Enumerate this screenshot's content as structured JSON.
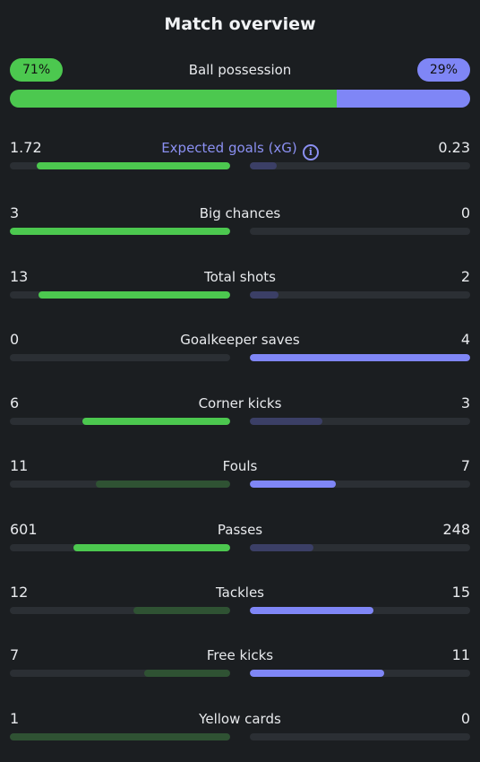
{
  "title": "Match overview",
  "colors": {
    "home_accent": "#4cc84f",
    "away_accent": "#7f86f6",
    "home_muted": "#2f5233",
    "away_muted": "#3b3f66",
    "track": "#2b2f34",
    "background": "#1b1e21"
  },
  "possession": {
    "label": "Ball possession",
    "home_label": "71%",
    "away_label": "29%",
    "home_pct": 71
  },
  "stats": [
    {
      "label": "Expected goals (xG)",
      "home": "1.72",
      "away": "0.23",
      "home_fill": 0.88,
      "away_fill": 0.12,
      "home_win": true,
      "away_win": false,
      "accent": true,
      "info": true
    },
    {
      "label": "Big chances",
      "home": "3",
      "away": "0",
      "home_fill": 1.0,
      "away_fill": 0.0,
      "home_win": true,
      "away_win": false
    },
    {
      "label": "Total shots",
      "home": "13",
      "away": "2",
      "home_fill": 0.87,
      "away_fill": 0.13,
      "home_win": true,
      "away_win": false
    },
    {
      "label": "Goalkeeper saves",
      "home": "0",
      "away": "4",
      "home_fill": 0.0,
      "away_fill": 1.0,
      "home_win": false,
      "away_win": true
    },
    {
      "label": "Corner kicks",
      "home": "6",
      "away": "3",
      "home_fill": 0.67,
      "away_fill": 0.33,
      "home_win": true,
      "away_win": false
    },
    {
      "label": "Fouls",
      "home": "11",
      "away": "7",
      "home_fill": 0.61,
      "away_fill": 0.39,
      "home_win": false,
      "away_win": true
    },
    {
      "label": "Passes",
      "home": "601",
      "away": "248",
      "home_fill": 0.71,
      "away_fill": 0.29,
      "home_win": true,
      "away_win": false
    },
    {
      "label": "Tackles",
      "home": "12",
      "away": "15",
      "home_fill": 0.44,
      "away_fill": 0.56,
      "home_win": false,
      "away_win": true
    },
    {
      "label": "Free kicks",
      "home": "7",
      "away": "11",
      "home_fill": 0.39,
      "away_fill": 0.61,
      "home_win": false,
      "away_win": true
    },
    {
      "label": "Yellow cards",
      "home": "1",
      "away": "0",
      "home_fill": 1.0,
      "away_fill": 0.0,
      "home_win": false,
      "away_win": true
    }
  ]
}
